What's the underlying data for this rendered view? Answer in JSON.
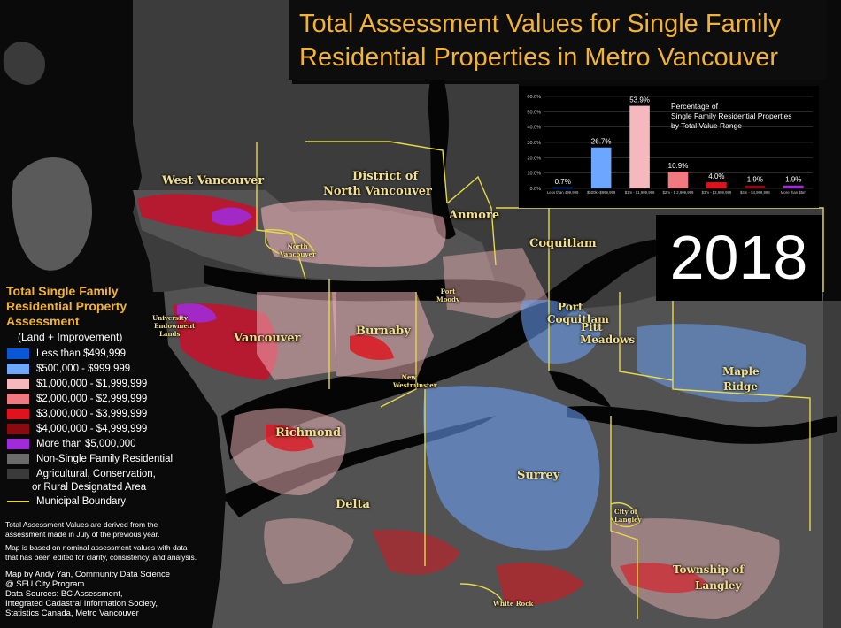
{
  "title": {
    "line1": "Total Assessment Values for Single Family",
    "line2": "Residential Properties in Metro Vancouver"
  },
  "year": "2018",
  "colors": {
    "title": "#f2b233",
    "place_label": "#f4e08a",
    "land_non_sfr": "#6b6b6b",
    "land_agri": "#3a3a3a",
    "water": "#050505",
    "boundary": "#e6d84a"
  },
  "places": {
    "west_vancouver": "West Vancouver",
    "district_nv_1": "District of",
    "district_nv_2": "North Vancouver",
    "north_vancouver": "North Vancouver",
    "anmore": "Anmore",
    "coquitlam": "Coquitlam",
    "port_moody": "Port Moody",
    "port_coquitlam_1": "Port",
    "port_coquitlam_2": "Coquitlam",
    "pitt_meadows_1": "Pitt",
    "pitt_meadows_2": "Meadows",
    "ubc_1": "University",
    "ubc_2": "Endowment",
    "ubc_3": "Lands",
    "vancouver": "Vancouver",
    "burnaby": "Burnaby",
    "new_westminster": "New Westminster",
    "maple_ridge_1": "Maple",
    "maple_ridge_2": "Ridge",
    "richmond": "Richmond",
    "surrey": "Surrey",
    "delta": "Delta",
    "city_langley_1": "City of",
    "city_langley_2": "Langley",
    "township_langley_1": "Township of",
    "township_langley_2": "Langley",
    "white_rock": "White Rock"
  },
  "legend": {
    "title1": "Total Single Family",
    "title2": "Residential Property",
    "title3": "Assessment",
    "subtitle": "(Land + Improvement)",
    "items": [
      {
        "label": "Less than $499,999",
        "color": "#0a56d8"
      },
      {
        "label": "$500,000 - $999,999",
        "color": "#6da6ff"
      },
      {
        "label": "$1,000,000 - $1,999,999",
        "color": "#f5b8bd"
      },
      {
        "label": "$2,000,000 - $2,999,999",
        "color": "#f07a80"
      },
      {
        "label": "$3,000,000 - $3,999,999",
        "color": "#e0121c"
      },
      {
        "label": "$4,000,000 - $4,999,999",
        "color": "#8a0a10"
      },
      {
        "label": "More than $5,000,000",
        "color": "#a12bd8"
      },
      {
        "label": "Non-Single Family Residential",
        "color": "#6b6b6b"
      },
      {
        "label": "Agricultural, Conservation,",
        "color": "#3a3a3a"
      },
      {
        "label": "or Rural Designated Area",
        "color": ""
      },
      {
        "label": "Municipal Boundary",
        "color": "#e6d84a"
      }
    ]
  },
  "notes": {
    "note1_a": "Total Assessment Values are derived from the",
    "note1_b": "assessment made in July of the previous year.",
    "note2_a": "Map is based on nominal assessment values with data",
    "note2_b": "that has been edited for clarity, consistency, and analysis."
  },
  "credits": {
    "l1": "Map by Andy Yan, Community Data Science",
    "l2": "@ SFU City Program",
    "l3": "Data Sources: BC Assessment,",
    "l4": "Integrated Cadastral Information Society,",
    "l5": "Statistics Canada, Metro Vancouver"
  },
  "chart_data": {
    "type": "bar",
    "title": "Percentage of Single Family Residential Properties by Total Value Range",
    "title_lines": [
      "Percentage of",
      "Single Family Residential Properties",
      "by Total Value Range"
    ],
    "categories": [
      "Less than 499,999",
      "$500k -$999,999",
      "$1m - $1,999,999",
      "$2m - $ 2,999,999",
      "$3m - $3,999,999",
      "$4m - $4,999,999",
      "More than $5m"
    ],
    "values": [
      0.7,
      26.7,
      53.9,
      10.9,
      4.0,
      1.9,
      1.9
    ],
    "value_labels": [
      "0.7%",
      "26.7%",
      "53.9%",
      "10.9%",
      "4.0%",
      "1.9%",
      "1.9%"
    ],
    "colors": [
      "#0a56d8",
      "#6da6ff",
      "#f5b8bd",
      "#f07a80",
      "#e0121c",
      "#8a0a10",
      "#a12bd8"
    ],
    "yticks": [
      "0.0%",
      "10.0%",
      "20.0%",
      "30.0%",
      "40.0%",
      "50.0%",
      "60.0%"
    ],
    "ylim": [
      0,
      60
    ],
    "grid": true
  }
}
